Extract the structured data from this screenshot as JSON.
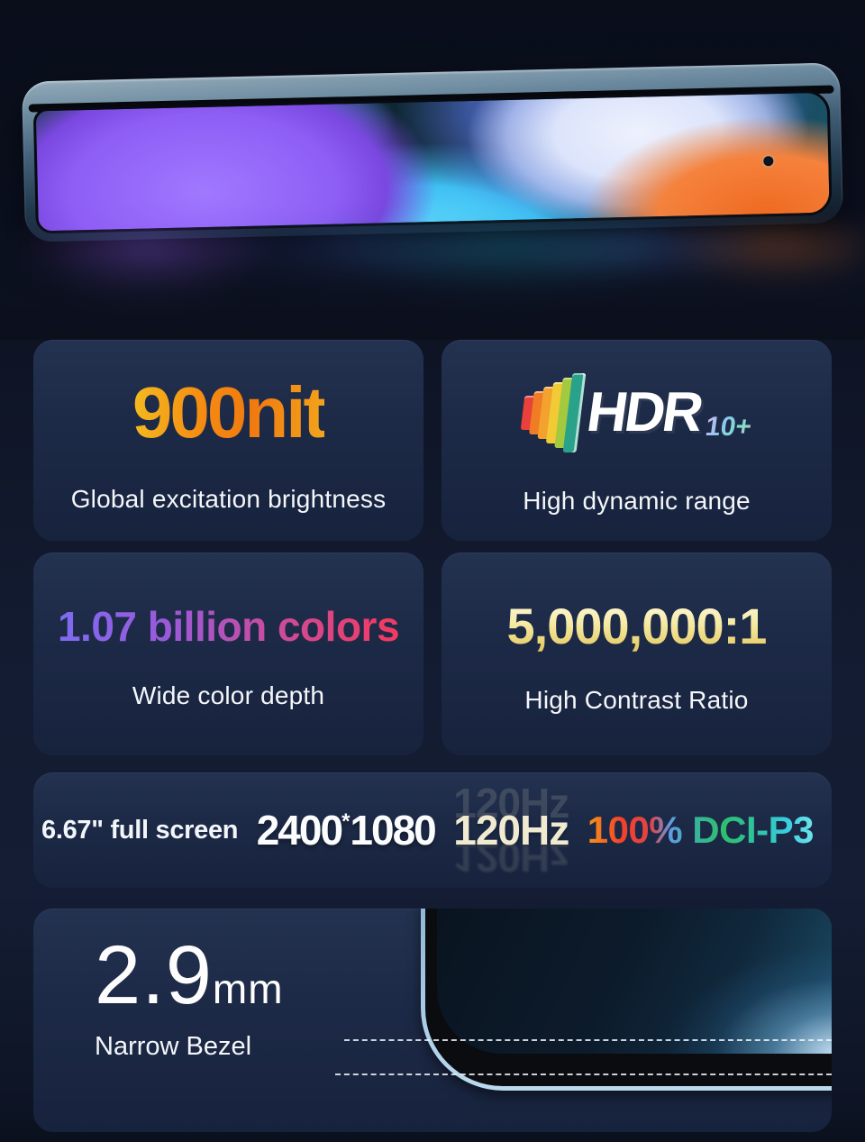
{
  "page": {
    "background": "#0e1424"
  },
  "hero": {
    "subject": "phone-front-tilted-render",
    "wallpaper_colors": [
      "#8e5ef5",
      "#3fc0f2",
      "#eef1fd",
      "#5c7ce0",
      "#f5823c",
      "#14303e"
    ],
    "frame_color": "#6d8ba0"
  },
  "cards": {
    "brightness": {
      "value": "900nit",
      "label": "Global excitation brightness",
      "value_gradient": [
        "#f4bc20",
        "#f58a12",
        "#f2a51c"
      ]
    },
    "hdr": {
      "logo": "HDR",
      "logo_suffix": "10+",
      "label": "High dynamic range",
      "bar_colors": [
        "#e8403a",
        "#f07c26",
        "#f3a22e",
        "#f2ca36",
        "#a3c93e",
        "#2aa189"
      ]
    },
    "color_depth": {
      "value": "1.07 billion colors",
      "label": "Wide color depth",
      "value_gradient": [
        "#7d6bf2",
        "#9a5ad8",
        "#c84da0",
        "#f03b64"
      ]
    },
    "contrast": {
      "value": "5,000,000:1",
      "label": "High Contrast Ratio",
      "value_gradient": [
        "#fdf8d8",
        "#f5e9a0",
        "#e2c65c"
      ]
    },
    "display": {
      "size": "6.67\" full screen",
      "resolution_a": "2400",
      "resolution_sep": "*",
      "resolution_b": "1080",
      "refresh_rate": "120Hz",
      "refresh_color": "#f0ead0",
      "color_gamut": "100% DCI-P3",
      "gamut_gradient": [
        "#f89518",
        "#f2422a",
        "#5c9ee4",
        "#2fbe6e",
        "#6ee4ea"
      ]
    },
    "bezel": {
      "value": "2.9",
      "unit": "mm",
      "label": "Narrow Bezel"
    }
  }
}
